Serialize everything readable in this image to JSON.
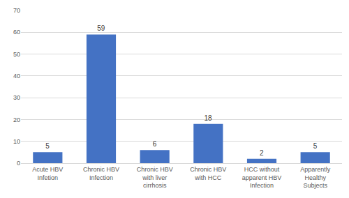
{
  "chart_data": {
    "type": "bar",
    "categories": [
      "Acute HBV Infetion",
      "Chronic HBV Infection",
      "Chronic HBV with liver cirrhosis",
      "Chronic HBV with HCC",
      "HCC without apparent HBV Infection",
      "Apparently Healthy Subjects"
    ],
    "values": [
      5,
      59,
      6,
      18,
      2,
      5
    ],
    "color": "#4472c4",
    "ylim": [
      0,
      70
    ],
    "yticks": [
      0,
      10,
      20,
      30,
      40,
      50,
      60,
      70
    ],
    "grid": true,
    "data_labels": true
  }
}
